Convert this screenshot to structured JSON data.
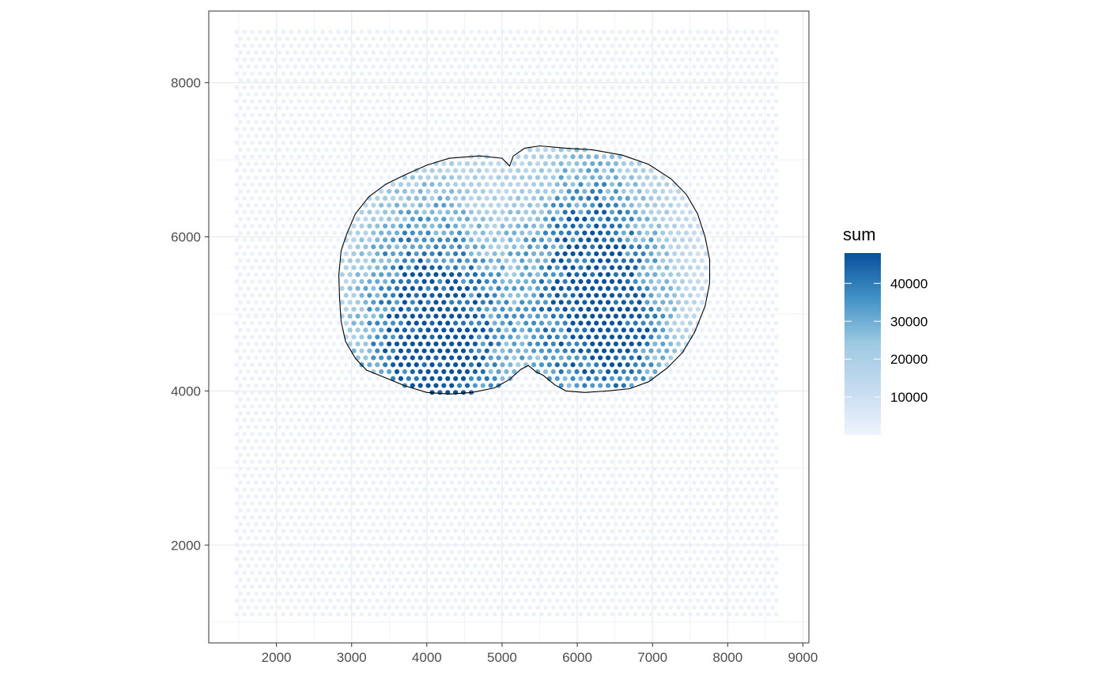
{
  "chart_data": {
    "type": "scatter",
    "title": "",
    "xlabel": "",
    "ylabel": "",
    "xlim": [
      1100,
      9080
    ],
    "ylim": [
      730,
      8930
    ],
    "x_ticks": [
      2000,
      3000,
      4000,
      5000,
      6000,
      7000,
      8000,
      9000
    ],
    "y_ticks": [
      2000,
      4000,
      6000,
      8000
    ],
    "x_tick_labels": [
      "2000",
      "3000",
      "4000",
      "5000",
      "6000",
      "7000",
      "8000",
      "9000"
    ],
    "y_tick_labels": [
      "2000",
      "4000",
      "6000",
      "8000"
    ],
    "grid": true,
    "spot_grid": {
      "x_range": [
        1470,
        8680
      ],
      "y_range": [
        1100,
        8730
      ],
      "x_step": 104,
      "y_step": 90
    },
    "tissue_outline": [
      [
        2860,
        5820
      ],
      [
        2940,
        6050
      ],
      [
        3050,
        6300
      ],
      [
        3230,
        6520
      ],
      [
        3450,
        6680
      ],
      [
        3700,
        6800
      ],
      [
        4000,
        6930
      ],
      [
        4300,
        7020
      ],
      [
        4700,
        7050
      ],
      [
        5000,
        7020
      ],
      [
        5100,
        6920
      ],
      [
        5150,
        7050
      ],
      [
        5300,
        7150
      ],
      [
        5500,
        7180
      ],
      [
        5850,
        7150
      ],
      [
        6200,
        7130
      ],
      [
        6600,
        7060
      ],
      [
        6950,
        6940
      ],
      [
        7250,
        6750
      ],
      [
        7450,
        6550
      ],
      [
        7600,
        6300
      ],
      [
        7700,
        6000
      ],
      [
        7760,
        5700
      ],
      [
        7760,
        5400
      ],
      [
        7700,
        5100
      ],
      [
        7560,
        4760
      ],
      [
        7400,
        4500
      ],
      [
        7200,
        4300
      ],
      [
        6950,
        4120
      ],
      [
        6700,
        4030
      ],
      [
        6400,
        4000
      ],
      [
        6100,
        3980
      ],
      [
        5850,
        4000
      ],
      [
        5700,
        4080
      ],
      [
        5550,
        4200
      ],
      [
        5450,
        4250
      ],
      [
        5350,
        4330
      ],
      [
        5250,
        4280
      ],
      [
        5100,
        4150
      ],
      [
        4900,
        4040
      ],
      [
        4600,
        3980
      ],
      [
        4300,
        3960
      ],
      [
        4000,
        3980
      ],
      [
        3700,
        4070
      ],
      [
        3450,
        4170
      ],
      [
        3200,
        4270
      ],
      [
        3050,
        4420
      ],
      [
        2920,
        4640
      ],
      [
        2860,
        4900
      ],
      [
        2840,
        5200
      ],
      [
        2830,
        5500
      ]
    ],
    "hotspots": [
      {
        "x": 3950,
        "y": 4800,
        "sx": 700,
        "sy": 1400,
        "amp": 42000
      },
      {
        "x": 4400,
        "y": 4500,
        "sx": 500,
        "sy": 700,
        "amp": 12000
      },
      {
        "x": 6200,
        "y": 5400,
        "sx": 700,
        "sy": 1300,
        "amp": 42000
      },
      {
        "x": 6600,
        "y": 4700,
        "sx": 500,
        "sy": 600,
        "amp": 14000
      }
    ],
    "legend": {
      "title": "sum",
      "position": "right",
      "min": 0,
      "max": 48000,
      "breaks": [
        10000,
        20000,
        30000,
        40000
      ],
      "break_labels": [
        "10000",
        "20000",
        "30000",
        "40000"
      ],
      "low_color": "#eef4fd",
      "mid_color": "#9ecae1",
      "high_color": "#08519c"
    },
    "colors": {
      "panel_border": "#333333",
      "grid": "#ebebeb",
      "outline": "#000000",
      "background_spot": "#eaf1fc"
    }
  }
}
